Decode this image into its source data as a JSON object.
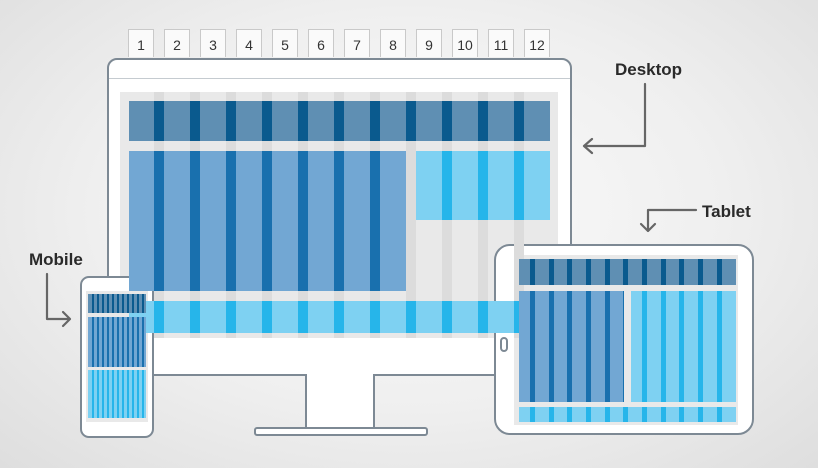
{
  "column_numbers": [
    "1",
    "2",
    "3",
    "4",
    "5",
    "6",
    "7",
    "8",
    "9",
    "10",
    "11",
    "12"
  ],
  "labels": {
    "desktop": "Desktop",
    "tablet": "Tablet",
    "mobile": "Mobile"
  },
  "colors": {
    "dark_block": "#5f8fb3",
    "dark_stripe": "#0a5a8e",
    "mid_block": "#72a7d3",
    "mid_stripe": "#1970ae",
    "light_block": "#7ed1f2",
    "light_stripe": "#26b5ea",
    "arrow": "#666666"
  }
}
